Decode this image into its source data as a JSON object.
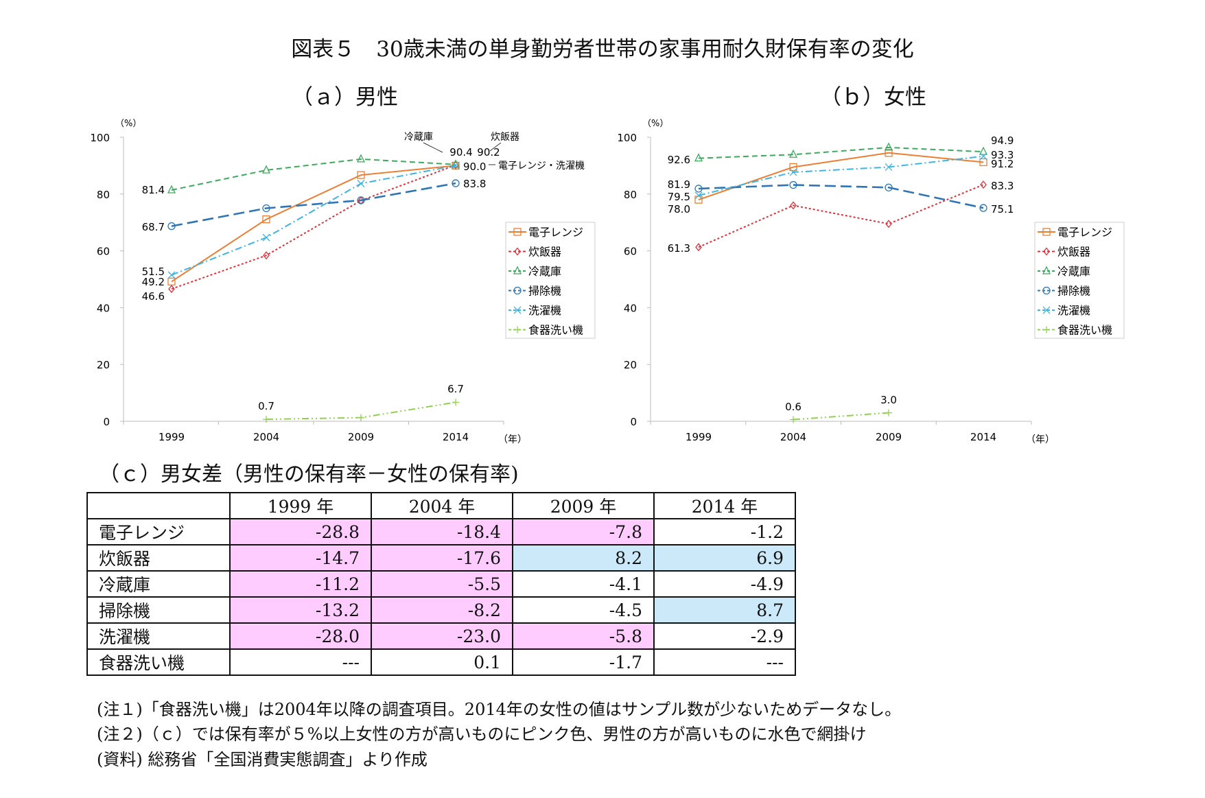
{
  "title": "図表５　30歳未満の単身勤労者世帯の家事用耐久財保有率の変化",
  "panel_a_title": "（ａ）男性",
  "panel_b_title": "（ｂ）女性",
  "panel_c_title": "（ｃ）男女差（男性の保有率－女性の保有率)",
  "chart_data": [
    {
      "type": "line",
      "title": "（ａ）男性",
      "ylabel": "（%）",
      "xlabel": "（年）",
      "ylim": [
        0,
        100
      ],
      "yticks": [
        "0",
        "20",
        "40",
        "60",
        "80",
        "100"
      ],
      "categories": [
        "1999",
        "2004",
        "2009",
        "2014"
      ],
      "legend": "right",
      "series": [
        {
          "name": "電子レンジ",
          "color": "#ed7d31",
          "values": [
            49.2,
            71.1,
            86.7,
            90.0
          ]
        },
        {
          "name": "炊飯器",
          "color": "#e0303a",
          "values": [
            46.6,
            58.4,
            77.7,
            90.2
          ]
        },
        {
          "name": "冷蔵庫",
          "color": "#3aaa5c",
          "values": [
            81.4,
            88.4,
            92.3,
            90.4
          ]
        },
        {
          "name": "掃除機",
          "color": "#2e75b6",
          "values": [
            68.7,
            75.0,
            77.8,
            83.8
          ]
        },
        {
          "name": "洗濯機",
          "color": "#3cb4e6",
          "values": [
            51.5,
            64.7,
            83.7,
            90.0
          ]
        },
        {
          "name": "食器洗い機",
          "color": "#92d050",
          "values": [
            null,
            0.7,
            1.3,
            6.7
          ]
        }
      ],
      "data_labels": [
        "81.4",
        "68.7",
        "51.5",
        "49.2",
        "46.6",
        "90.4",
        "90.2",
        "90.0",
        "83.8",
        "0.7",
        "6.7"
      ],
      "annotations": [
        "冷蔵庫",
        "炊飯器",
        "電子レンジ・洗濯機"
      ]
    },
    {
      "type": "line",
      "title": "（ｂ）女性",
      "ylabel": "（%）",
      "xlabel": "（年）",
      "ylim": [
        0,
        100
      ],
      "yticks": [
        "0",
        "20",
        "40",
        "60",
        "80",
        "100"
      ],
      "categories": [
        "1999",
        "2004",
        "2009",
        "2014"
      ],
      "legend": "right",
      "series": [
        {
          "name": "電子レンジ",
          "color": "#ed7d31",
          "values": [
            78.0,
            89.5,
            94.5,
            91.2
          ]
        },
        {
          "name": "炊飯器",
          "color": "#e0303a",
          "values": [
            61.3,
            76.0,
            69.5,
            83.3
          ]
        },
        {
          "name": "冷蔵庫",
          "color": "#3aaa5c",
          "values": [
            92.6,
            93.9,
            96.4,
            94.9
          ]
        },
        {
          "name": "掃除機",
          "color": "#2e75b6",
          "values": [
            81.9,
            83.2,
            82.3,
            75.1
          ]
        },
        {
          "name": "洗濯機",
          "color": "#3cb4e6",
          "values": [
            79.5,
            87.7,
            89.5,
            93.3
          ]
        },
        {
          "name": "食器洗い機",
          "color": "#92d050",
          "values": [
            null,
            0.6,
            3.0,
            null
          ]
        }
      ],
      "data_labels": [
        "92.6",
        "81.9",
        "79.5",
        "78.0",
        "61.3",
        "94.9",
        "93.3",
        "91.2",
        "83.3",
        "75.1",
        "0.6",
        "3.0"
      ]
    }
  ],
  "table": {
    "headers": [
      "",
      "1999 年",
      "2004 年",
      "2009 年",
      "2014 年"
    ],
    "rows": [
      {
        "label": "電子レンジ",
        "values": [
          "-28.8",
          "-18.4",
          "-7.8",
          "-1.2"
        ],
        "shade": [
          "pink",
          "pink",
          "pink",
          ""
        ]
      },
      {
        "label": "炊飯器",
        "values": [
          "-14.7",
          "-17.6",
          "8.2",
          "6.9"
        ],
        "shade": [
          "pink",
          "pink",
          "blue",
          "blue"
        ]
      },
      {
        "label": "冷蔵庫",
        "values": [
          "-11.2",
          "-5.5",
          "-4.1",
          "-4.9"
        ],
        "shade": [
          "pink",
          "pink",
          "",
          ""
        ]
      },
      {
        "label": "掃除機",
        "values": [
          "-13.2",
          "-8.2",
          "-4.5",
          "8.7"
        ],
        "shade": [
          "pink",
          "pink",
          "",
          "blue"
        ]
      },
      {
        "label": "洗濯機",
        "values": [
          "-28.0",
          "-23.0",
          "-5.8",
          "-2.9"
        ],
        "shade": [
          "pink",
          "pink",
          "pink",
          ""
        ]
      },
      {
        "label": "食器洗い機",
        "values": [
          "---",
          "0.1",
          "-1.7",
          "---"
        ],
        "shade": [
          "",
          "",
          "",
          ""
        ]
      }
    ]
  },
  "colors": {
    "pink": "#ffccff",
    "blue": "#cce9fa"
  },
  "notes": [
    "(注１)「食器洗い機」は2004年以降の調査項目。2014年の女性の値はサンプル数が少ないためデータなし。",
    "(注２)（ｃ）では保有率が５%以上女性の方が高いものにピンク色、男性の方が高いものに水色で網掛け",
    "(資料) 総務省「全国消費実態調査」より作成"
  ]
}
